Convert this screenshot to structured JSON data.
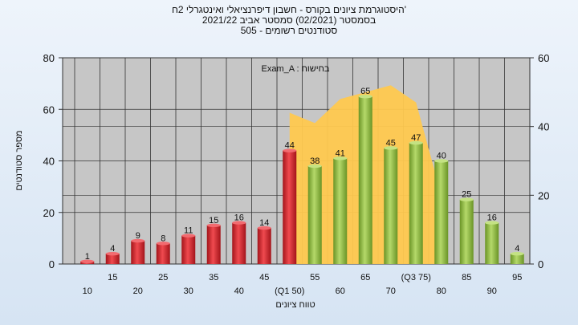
{
  "titles": {
    "line1": "היסטוגרמת ציונים בקורס - חשבון דיפרנציאלי ואינטגרלי 2ח'",
    "line2": "בסמסטר  (02/2021)  סמסטר אביב 2021/22",
    "line3": "505 - סטודנטים רשומים"
  },
  "annotation": "Exam_A : בחישוח",
  "chart_data": {
    "type": "bar",
    "title": "היסטוגרמת ציונים בקורס - חשבון דיפרנציאלי ואינטגרלי 2ח'",
    "xlabel": "טווח ציונים",
    "ylabel": "מספר סטודנטים",
    "ylim": [
      0,
      80
    ],
    "y2lim": [
      0,
      60
    ],
    "y_ticks": [
      0,
      20,
      40,
      60,
      80
    ],
    "y2_ticks": [
      0,
      20,
      40,
      60
    ],
    "grid": true,
    "categories": [
      "10",
      "15",
      "20",
      "25",
      "30",
      "35",
      "40",
      "45",
      "(Q1 50)",
      "55",
      "60",
      "65",
      "70",
      "(Q3 75)",
      "80",
      "85",
      "90",
      "95"
    ],
    "values": [
      1,
      4,
      9,
      8,
      11,
      15,
      16,
      14,
      44,
      38,
      41,
      65,
      45,
      47,
      40,
      25,
      16,
      4
    ],
    "bar_colors": [
      "#e0262c",
      "#e0262c",
      "#e0262c",
      "#e0262c",
      "#e0262c",
      "#e0262c",
      "#e0262c",
      "#e0262c",
      "#e0262c",
      "#8fbf3a",
      "#8fbf3a",
      "#8fbf3a",
      "#8fbf3a",
      "#8fbf3a",
      "#8fbf3a",
      "#8fbf3a",
      "#8fbf3a",
      "#8fbf3a"
    ],
    "area": {
      "color": "#ffc94f",
      "start_index": 8,
      "end_index": 14,
      "y2_values": [
        44,
        41,
        48,
        50,
        52,
        47,
        20
      ]
    },
    "colors": {
      "plot_background": "#c6c6c6",
      "red_bar": "#e0262c",
      "green_bar": "#8fbf3a",
      "area": "#ffc94f"
    }
  }
}
